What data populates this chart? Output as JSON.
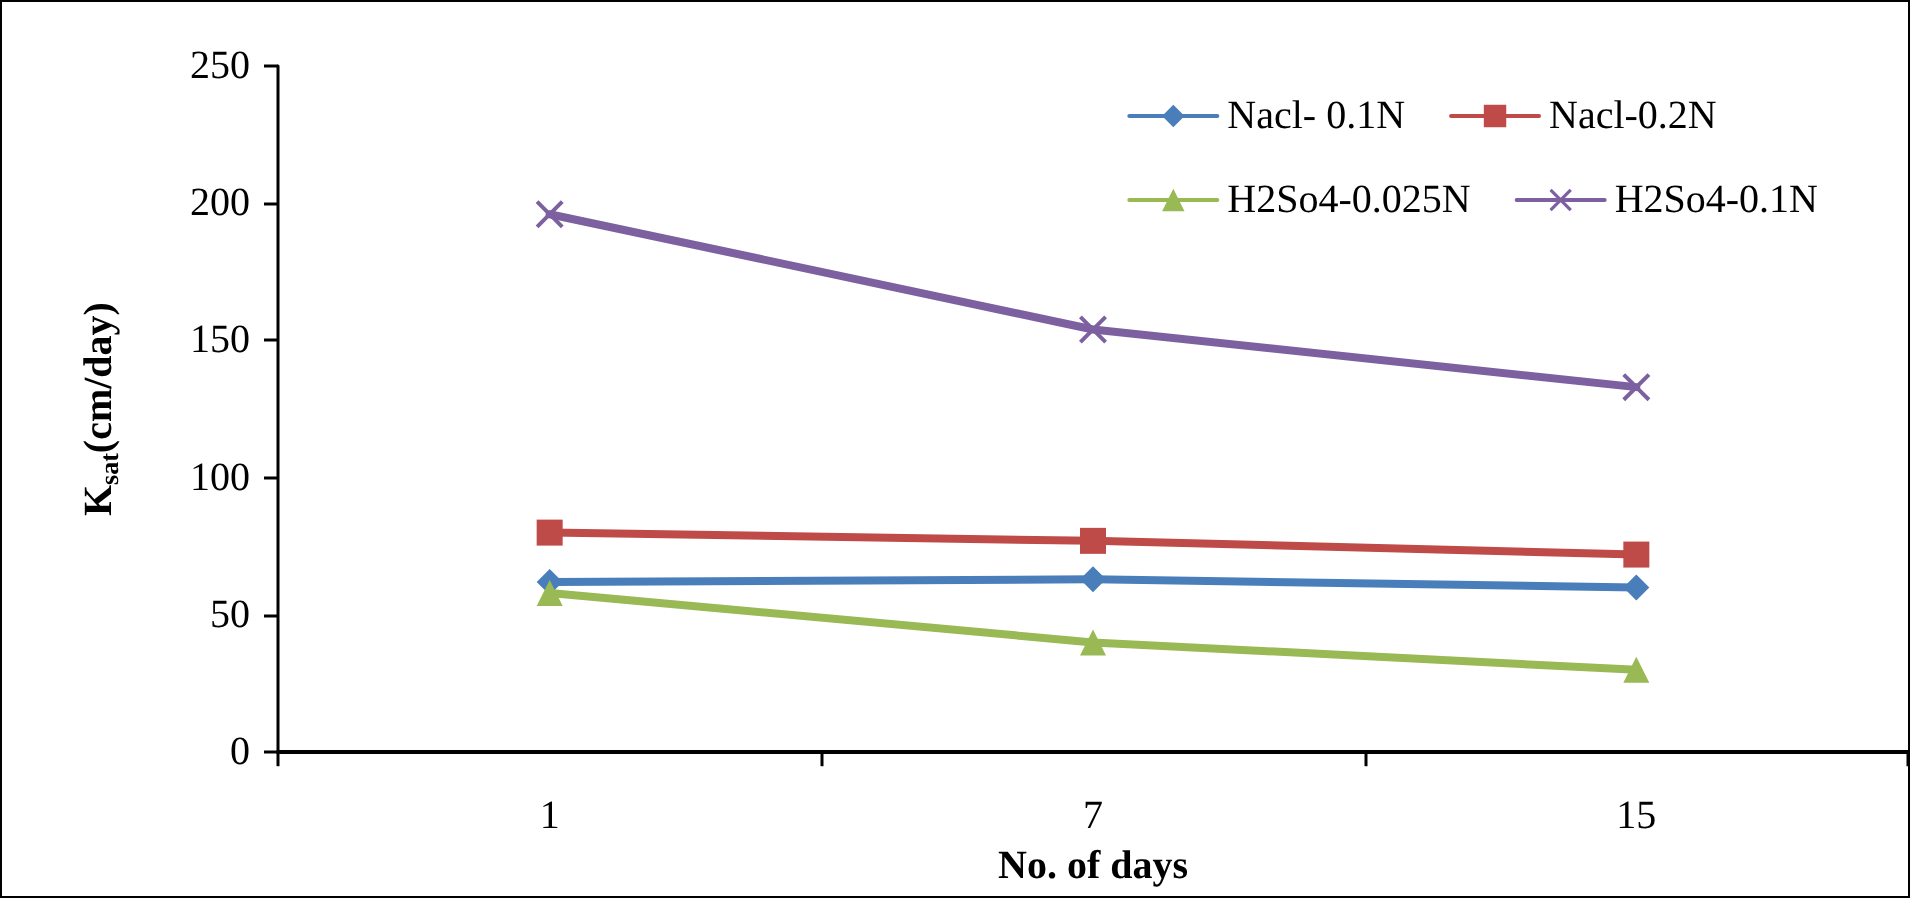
{
  "chart_data": {
    "type": "line",
    "xlabel": "No. of days",
    "ylabel": "K$_{sat}$(cm/day)",
    "categories": [
      "1",
      "7",
      "15"
    ],
    "series": [
      {
        "name": "Nacl- 0.1N",
        "color": "#4a7ebb",
        "marker": "diamond",
        "values": [
          62,
          63,
          60
        ]
      },
      {
        "name": "Nacl-0.2N",
        "color": "#be4b48",
        "marker": "square",
        "values": [
          80,
          77,
          72
        ]
      },
      {
        "name": "H2So4-0.025N",
        "color": "#98b954",
        "marker": "triangle",
        "values": [
          58,
          40,
          30
        ]
      },
      {
        "name": "H2So4-0.1N",
        "color": "#7d60a0",
        "marker": "cross",
        "values": [
          196,
          154,
          133
        ]
      }
    ],
    "ylim": [
      0,
      250
    ],
    "yticks": [
      0,
      50,
      100,
      150,
      200,
      250
    ],
    "grid": false,
    "legend": "top right",
    "line_style": "solid"
  }
}
